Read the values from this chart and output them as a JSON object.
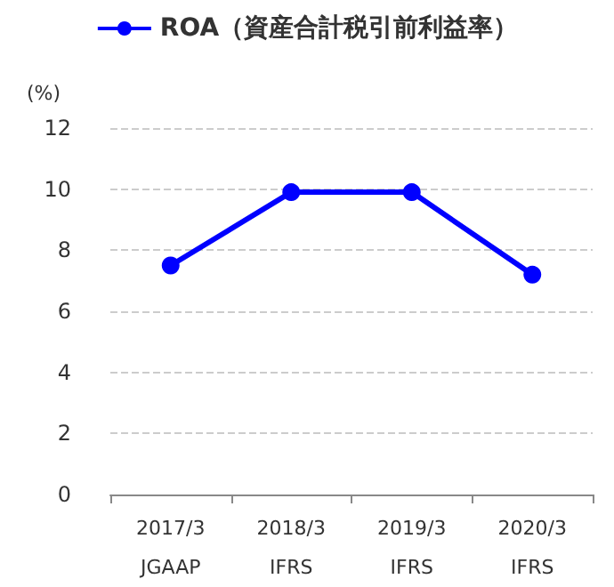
{
  "chart_data": {
    "type": "line",
    "ylabel": "(%)",
    "categories": [
      "2017/3\nJGAAP",
      "2018/3\nIFRS",
      "2019/3\nIFRS",
      "2020/3\nIFRS"
    ],
    "series": [
      {
        "name": "ROA（資産合計税引前利益率）",
        "color": "#0000ff",
        "values": [
          7.5,
          9.9,
          9.9,
          7.2
        ]
      }
    ],
    "ylim": [
      0,
      12
    ],
    "yticks": [
      0,
      2,
      4,
      6,
      8,
      10,
      12
    ],
    "grid": "y",
    "legend": "top",
    "marker": "circle",
    "line_style": "solid"
  }
}
